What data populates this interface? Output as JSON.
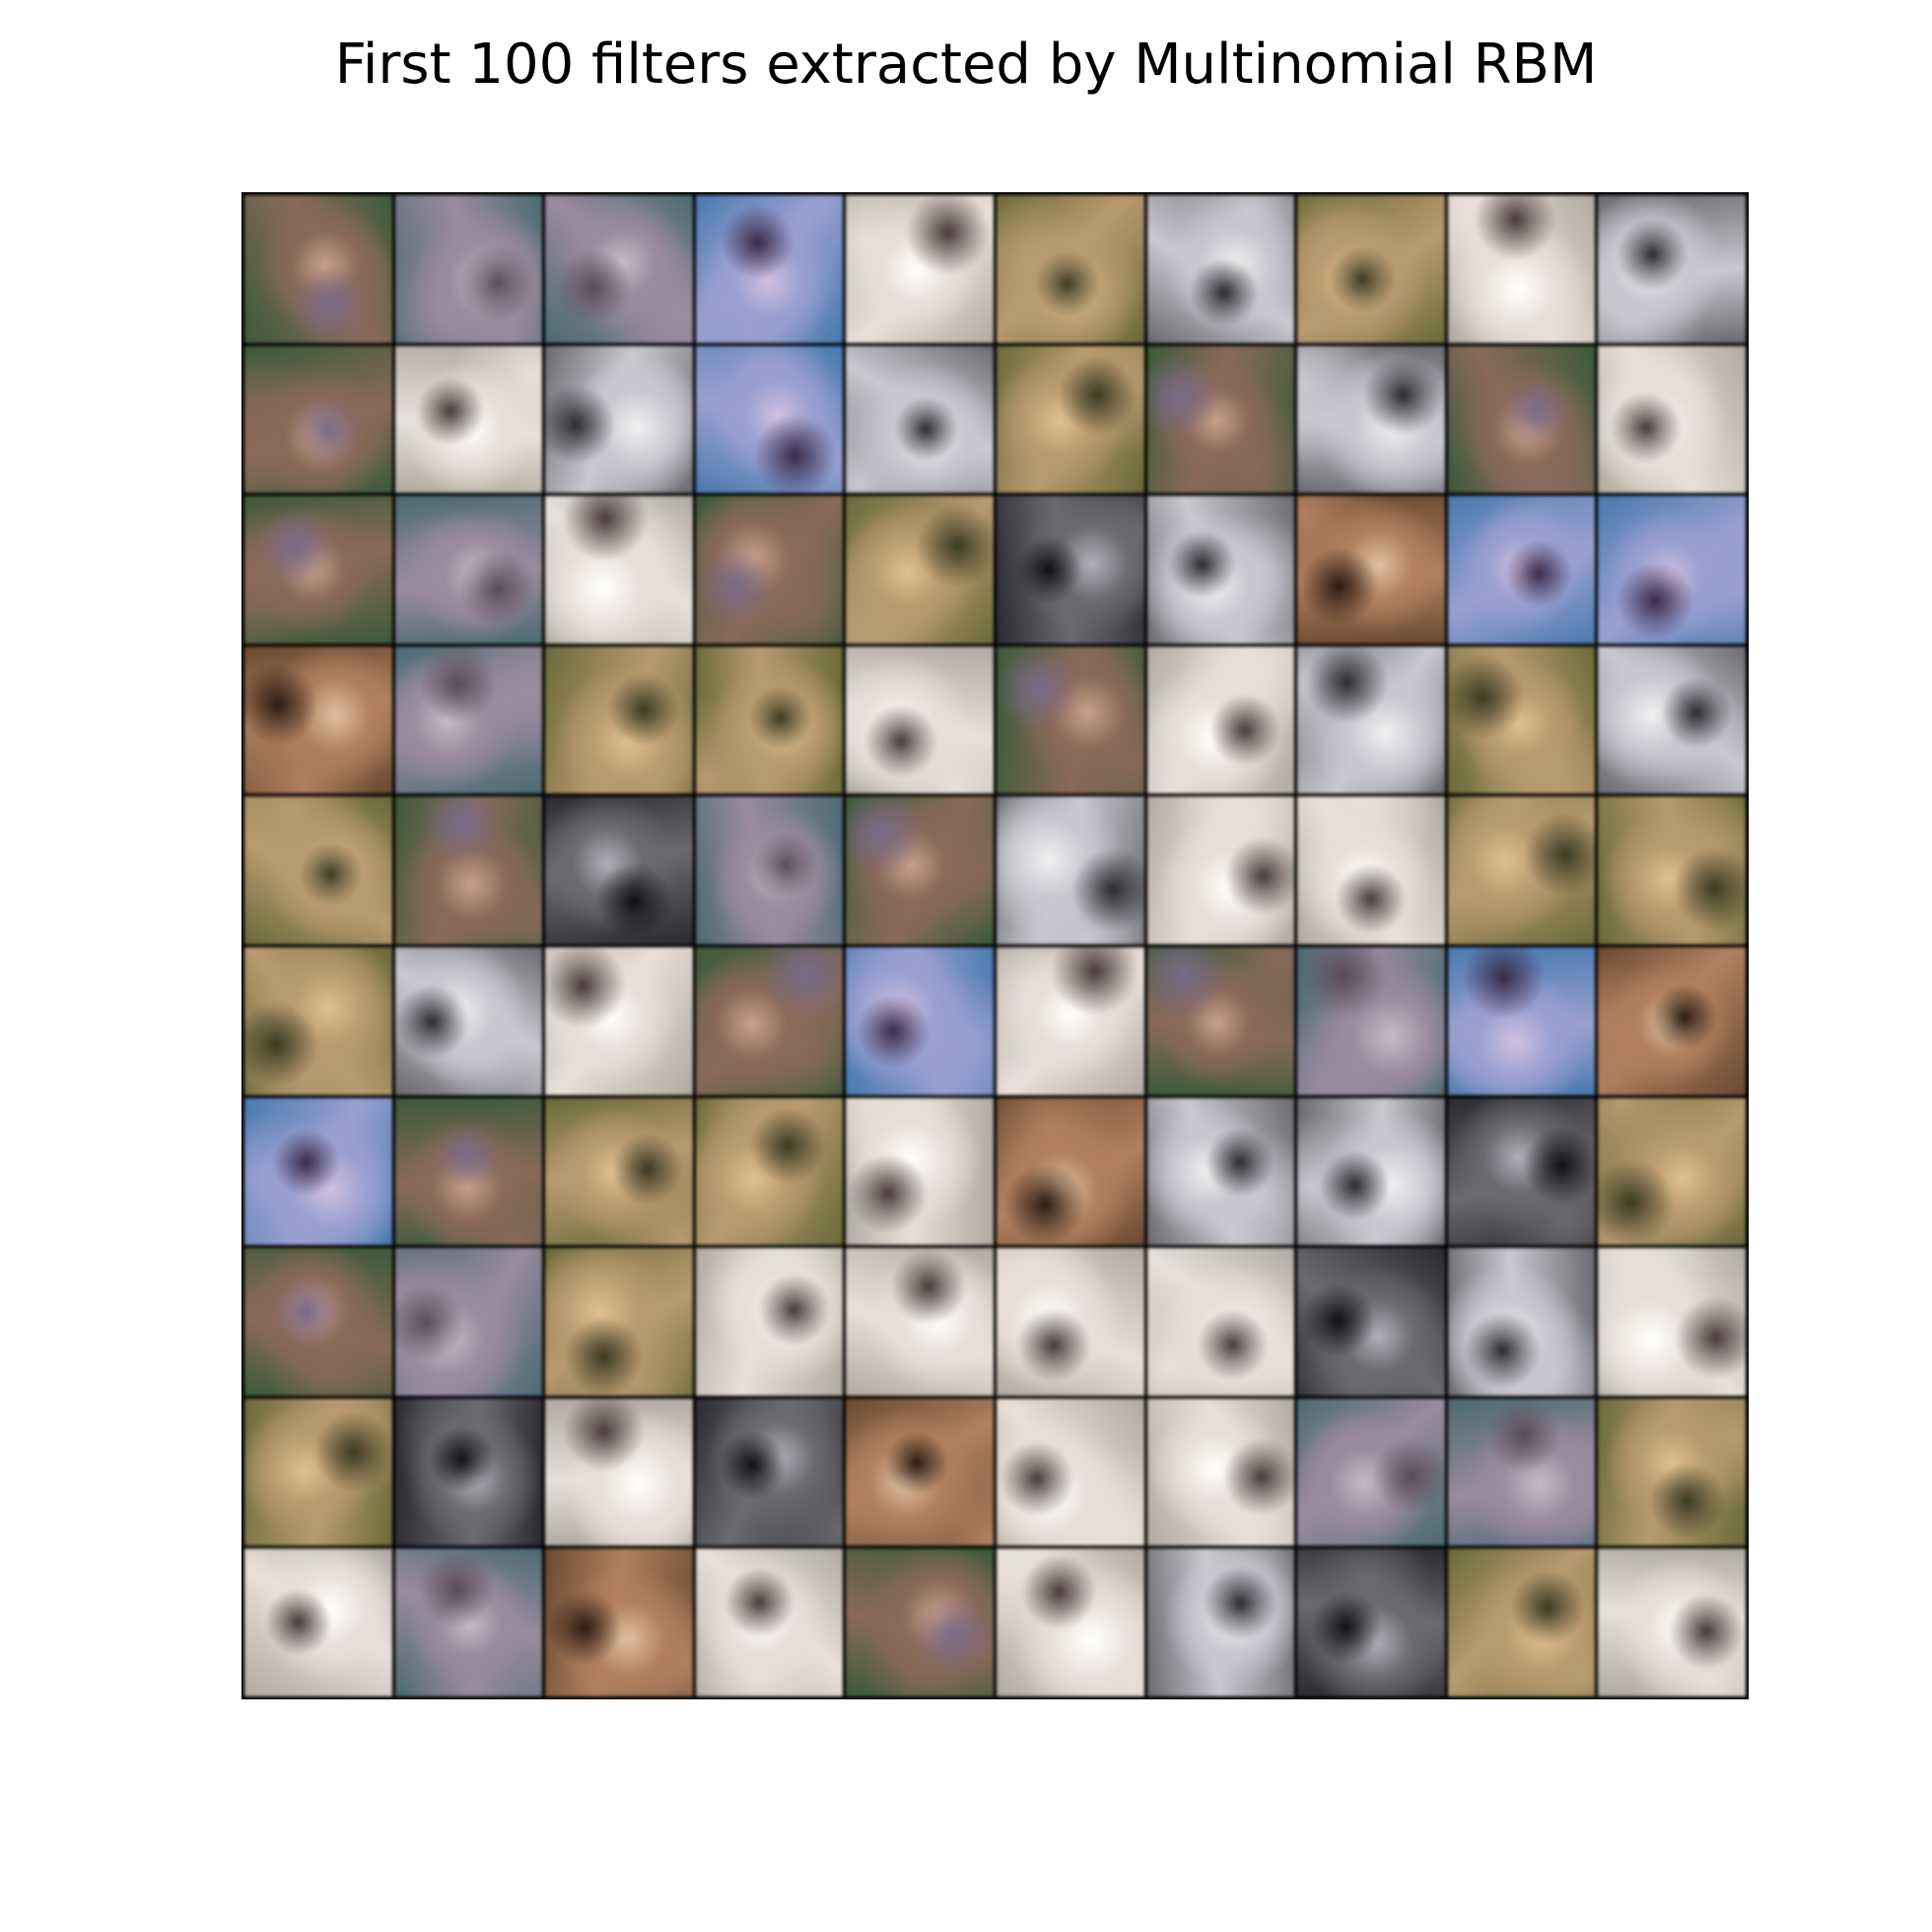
{
  "figure": {
    "title": "First 100 filters extracted by Multinomial RBM",
    "rows": 10,
    "cols": 10
  },
  "palette": {
    "noisy_green": [
      "#3c5a3a",
      "#8a6a5a",
      "#c9a08a",
      "#7a6a8a"
    ],
    "noisy_teal": [
      "#4a6a72",
      "#9a8aa0",
      "#c8b8c8",
      "#5a4a5a"
    ],
    "blue_sky": [
      "#4a7ab0",
      "#9aa0d0",
      "#d0c0e0",
      "#3a2a4a"
    ],
    "olive": [
      "#6a6a3a",
      "#b89a70",
      "#e0c090",
      "#3a3a20"
    ],
    "grey_blob": [
      "#6a6a70",
      "#c8c8d0",
      "#f0f0f0",
      "#2a2a30"
    ],
    "brown": [
      "#6a4a30",
      "#b08060",
      "#e0c0a0",
      "#2a1a10"
    ],
    "pale": [
      "#b0aaa0",
      "#e8e0d8",
      "#ffffff",
      "#4a3a3a"
    ],
    "dark": [
      "#2a2a30",
      "#6a6a70",
      "#b0b0b8",
      "#101014"
    ]
  },
  "tiles": [
    "noisy_green",
    "noisy_teal",
    "noisy_teal",
    "blue_sky",
    "pale",
    "olive",
    "grey_blob",
    "olive",
    "pale",
    "grey_blob",
    "noisy_green",
    "pale",
    "grey_blob",
    "blue_sky",
    "grey_blob",
    "olive",
    "noisy_green",
    "grey_blob",
    "noisy_green",
    "pale",
    "noisy_green",
    "noisy_teal",
    "pale",
    "noisy_green",
    "olive",
    "dark",
    "grey_blob",
    "brown",
    "blue_sky",
    "blue_sky",
    "brown",
    "noisy_teal",
    "olive",
    "olive",
    "pale",
    "noisy_green",
    "pale",
    "grey_blob",
    "olive",
    "grey_blob",
    "olive",
    "noisy_green",
    "dark",
    "noisy_teal",
    "noisy_green",
    "grey_blob",
    "pale",
    "pale",
    "olive",
    "olive",
    "olive",
    "grey_blob",
    "pale",
    "noisy_green",
    "blue_sky",
    "pale",
    "noisy_green",
    "noisy_teal",
    "blue_sky",
    "brown",
    "blue_sky",
    "noisy_green",
    "olive",
    "olive",
    "pale",
    "brown",
    "grey_blob",
    "grey_blob",
    "dark",
    "olive",
    "noisy_green",
    "noisy_teal",
    "olive",
    "pale",
    "pale",
    "pale",
    "pale",
    "dark",
    "grey_blob",
    "pale",
    "olive",
    "dark",
    "pale",
    "dark",
    "brown",
    "pale",
    "pale",
    "noisy_teal",
    "noisy_teal",
    "olive",
    "pale",
    "noisy_teal",
    "brown",
    "pale",
    "noisy_green",
    "pale",
    "grey_blob",
    "dark",
    "olive",
    "pale"
  ]
}
